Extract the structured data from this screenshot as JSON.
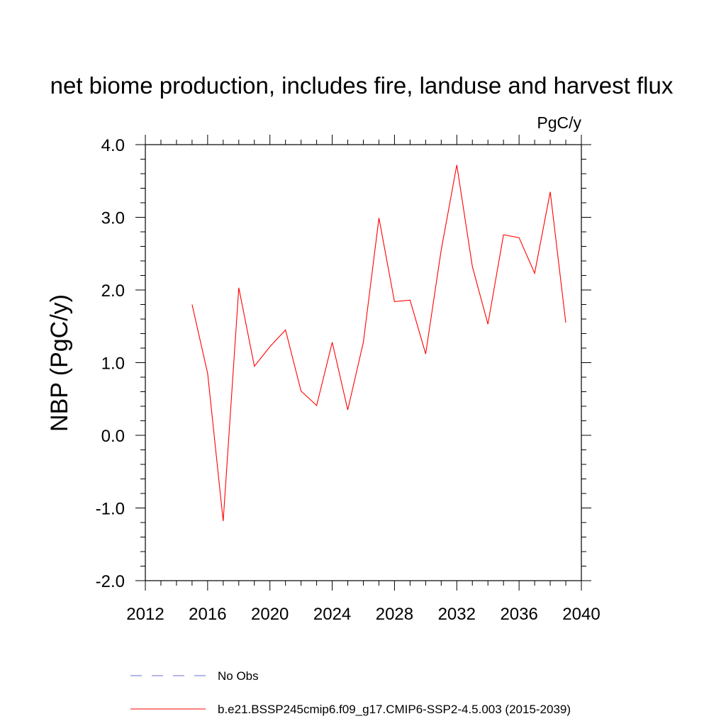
{
  "chart_data": {
    "type": "line",
    "title": "net biome production, includes fire, landuse and harvest flux",
    "units": "PgC/y",
    "ylabel": "NBP  (PgC/y)",
    "xlabel": "",
    "xlim": [
      2012,
      2040
    ],
    "ylim": [
      -2.0,
      4.0
    ],
    "x_ticks": [
      2012,
      2016,
      2020,
      2024,
      2028,
      2032,
      2036,
      2040
    ],
    "x_tick_labels": [
      "2012",
      "2016",
      "2020",
      "2024",
      "2028",
      "2032",
      "2036",
      "2040"
    ],
    "y_ticks": [
      -2.0,
      -1.0,
      0.0,
      1.0,
      2.0,
      3.0,
      4.0
    ],
    "y_tick_labels": [
      "-2.0",
      "-1.0",
      "0.0",
      "1.0",
      "2.0",
      "3.0",
      "4.0"
    ],
    "grid": false,
    "legend_position": "bottom",
    "series": [
      {
        "name": "No Obs",
        "color": "#6b6bd6",
        "style": "dashed",
        "x": [],
        "values": []
      },
      {
        "name": "b.e21.BSSP245cmip6.f09_g17.CMIP6-SSP2-4.5.003 (2015-2039)",
        "color": "#ff0000",
        "style": "solid",
        "x": [
          2015,
          2016,
          2017,
          2018,
          2019,
          2020,
          2021,
          2022,
          2023,
          2024,
          2025,
          2026,
          2027,
          2028,
          2029,
          2030,
          2031,
          2032,
          2033,
          2034,
          2035,
          2036,
          2037,
          2038,
          2039
        ],
        "values": [
          1.8,
          0.85,
          -1.18,
          2.03,
          0.95,
          1.22,
          1.45,
          0.61,
          0.41,
          1.28,
          0.35,
          1.28,
          2.99,
          1.84,
          1.86,
          1.12,
          2.55,
          3.72,
          2.32,
          1.53,
          2.76,
          2.72,
          2.23,
          3.35,
          1.55
        ]
      }
    ]
  }
}
